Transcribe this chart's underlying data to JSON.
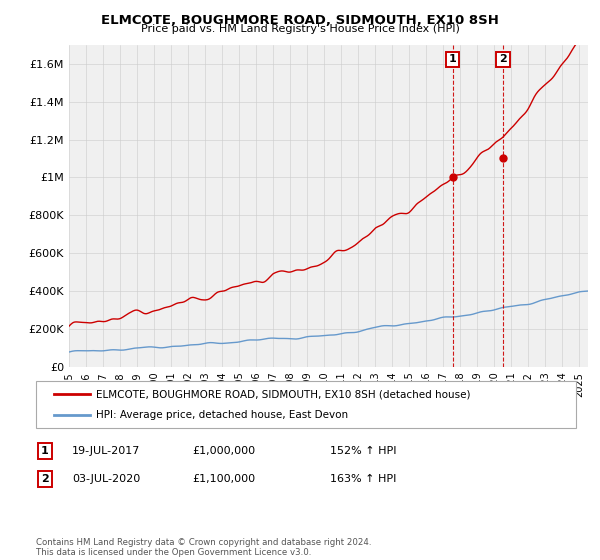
{
  "title": "ELMCOTE, BOUGHMORE ROAD, SIDMOUTH, EX10 8SH",
  "subtitle": "Price paid vs. HM Land Registry's House Price Index (HPI)",
  "legend_label_red": "ELMCOTE, BOUGHMORE ROAD, SIDMOUTH, EX10 8SH (detached house)",
  "legend_label_blue": "HPI: Average price, detached house, East Devon",
  "annotation1_date": "19-JUL-2017",
  "annotation1_price": "£1,000,000",
  "annotation1_hpi": "152% ↑ HPI",
  "annotation2_date": "03-JUL-2020",
  "annotation2_price": "£1,100,000",
  "annotation2_hpi": "163% ↑ HPI",
  "footer": "Contains HM Land Registry data © Crown copyright and database right 2024.\nThis data is licensed under the Open Government Licence v3.0.",
  "ylim": [
    0,
    1700000
  ],
  "yticks": [
    0,
    200000,
    400000,
    600000,
    800000,
    1000000,
    1200000,
    1400000,
    1600000
  ],
  "ytick_labels": [
    "£0",
    "£200K",
    "£400K",
    "£600K",
    "£800K",
    "£1M",
    "£1.2M",
    "£1.4M",
    "£1.6M"
  ],
  "red_color": "#cc0000",
  "blue_color": "#6699cc",
  "background_color": "#ffffff",
  "plot_bg_color": "#f0f0f0",
  "sale1_x": 2017.54,
  "sale1_y": 1000000,
  "sale2_x": 2020.5,
  "sale2_y": 1100000,
  "xmin": 1995,
  "xmax": 2025.5
}
